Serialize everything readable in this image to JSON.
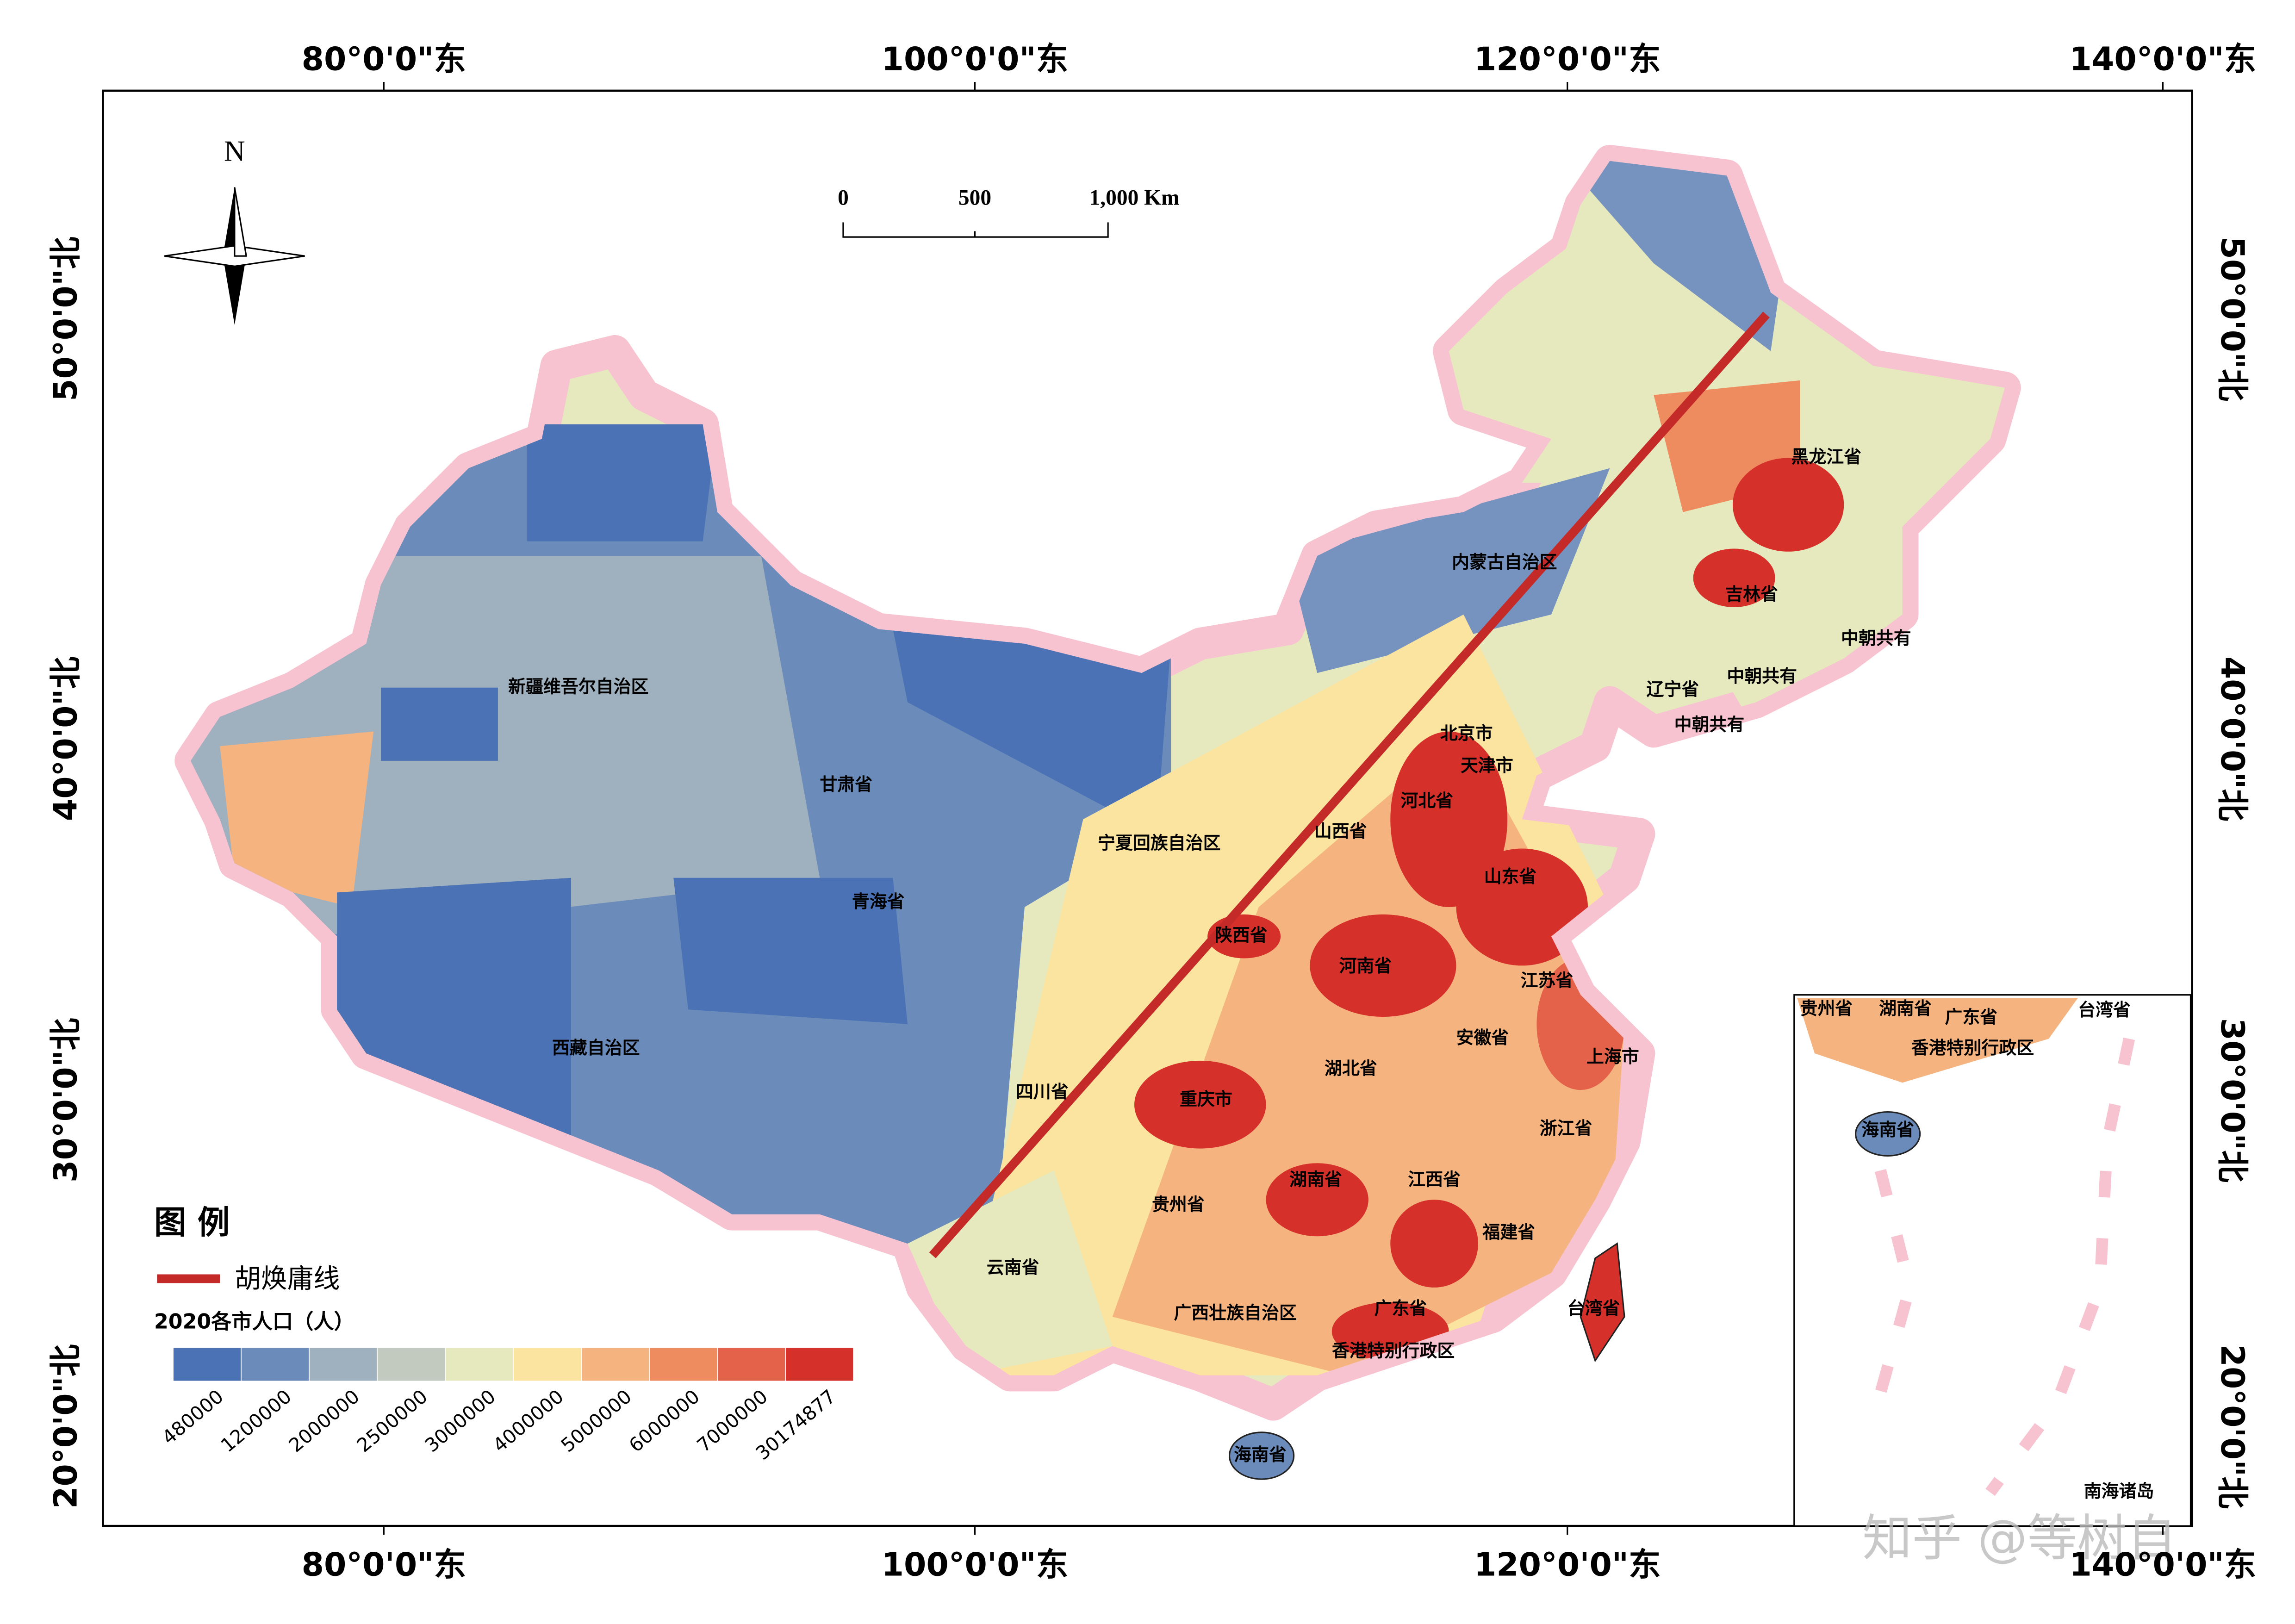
{
  "north_label": "N",
  "scale_bar": {
    "labels": [
      "0",
      "500",
      "1,000 Km"
    ]
  },
  "lon_labels_top": [
    "80°0'0\"东",
    "100°0'0\"东",
    "120°0'0\"东",
    "140°0'0\"东"
  ],
  "lon_labels_bottom": [
    "80°0'0\"东",
    "100°0'0\"东",
    "120°0'0\"东",
    "140°0'0\"东"
  ],
  "lat_labels_left": [
    "50°0'0\"北",
    "40°0'0\"北",
    "30°0'0\"北",
    "20°0'0\"北"
  ],
  "lat_labels_right": [
    "50°0'0\"北",
    "40°0'0\"北",
    "30°0'0\"北",
    "20°0'0\"北"
  ],
  "legend": {
    "title": "图 例",
    "line_label": "胡焕庸线",
    "ramp_title": "2020各市人口（人）",
    "breaks": [
      "480000",
      "1200000",
      "2000000",
      "2500000",
      "3000000",
      "4000000",
      "5000000",
      "6000000",
      "7000000",
      "30174877"
    ],
    "colors": [
      "#4a72b4",
      "#6b8cbb",
      "#9fb0bf",
      "#c2cac0",
      "#e6e8bd",
      "#fbe3a0",
      "#f5b47f",
      "#ee8c5f",
      "#e4624a",
      "#d6302b"
    ]
  },
  "map_labels": [
    "新疆维吾尔自治区",
    "甘肃省",
    "宁夏回族自治区",
    "青海省",
    "西藏自治区",
    "四川省",
    "内蒙古自治区",
    "黑龙江省",
    "吉林省",
    "中朝共有",
    "中朝共有",
    "辽宁省",
    "中朝共有",
    "北京市",
    "天津市",
    "河北省",
    "山西省",
    "山东省",
    "陕西省",
    "河南省",
    "江苏省",
    "安徽省",
    "上海市",
    "湖北省",
    "重庆市",
    "浙江省",
    "湖南省",
    "江西省",
    "贵州省",
    "福建省",
    "云南省",
    "广西壮族自治区",
    "广东省",
    "台湾省",
    "香港特别行政区",
    "海南省"
  ],
  "inset_labels": [
    "贵州省",
    "湖南省",
    "广东省",
    "台湾省",
    "香港特别行政区",
    "海南省",
    "南海诸岛"
  ],
  "watermark": "知乎 @等树自"
}
